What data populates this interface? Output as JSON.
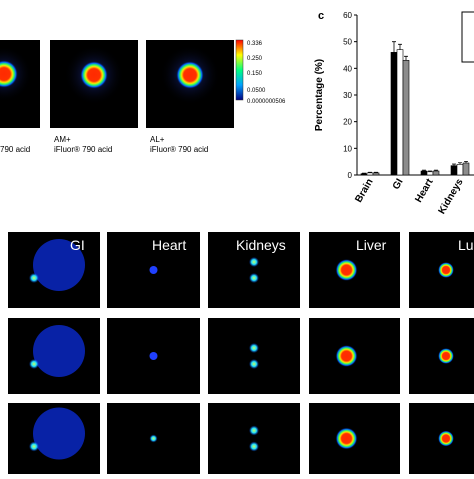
{
  "chart_data": {
    "type": "bar",
    "panel_letter": "c",
    "y_label": "Percentage (%)",
    "categories": [
      "Brain",
      "GI",
      "Heart",
      "Kidneys"
    ],
    "series": [
      {
        "color": "#000000",
        "values": [
          0.5,
          46,
          1.5,
          3.5
        ],
        "errors": [
          0.2,
          4,
          0.3,
          0.6
        ]
      },
      {
        "color": "#ffffff",
        "values": [
          0.8,
          47,
          1.2,
          4
        ],
        "errors": [
          0.2,
          2,
          0.3,
          0.6
        ]
      },
      {
        "color": "#8c8c8c",
        "values": [
          0.8,
          43,
          1.5,
          4.5
        ],
        "errors": [
          0.2,
          1.5,
          0.3,
          0.6
        ]
      }
    ],
    "ylim": [
      0,
      60
    ],
    "yticks": [
      0,
      10,
      20,
      30,
      40,
      50,
      60
    ]
  },
  "top_panels": [
    {
      "caption_lines": [
        "790 acid"
      ]
    },
    {
      "caption_lines": [
        "AM+",
        "iFluor® 790 acid"
      ]
    },
    {
      "caption_lines": [
        "AL+",
        "iFluor® 790 acid"
      ]
    }
  ],
  "colorbar_labels": [
    "0.336",
    "0.250",
    "0.150",
    "0.0500",
    "0.0000000506"
  ],
  "image_grid": {
    "labels": [
      "GI",
      "Heart",
      "Kidneys",
      "Liver",
      "Lu"
    ]
  }
}
